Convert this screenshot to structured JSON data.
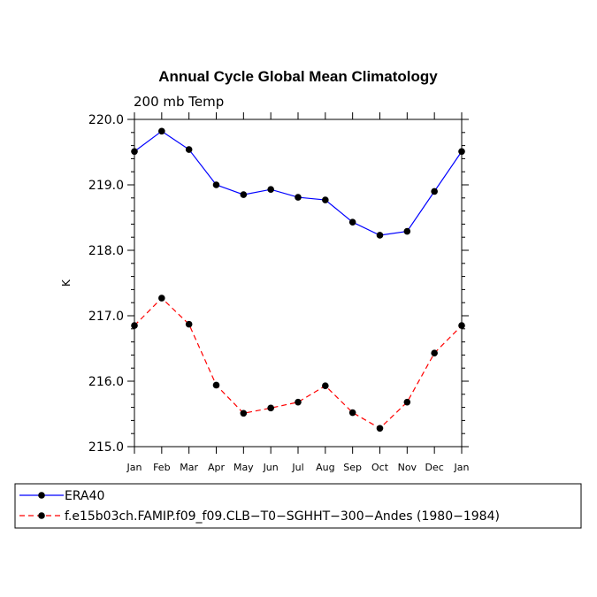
{
  "chart_data": {
    "type": "line",
    "title": "Annual Cycle Global Mean Climatology",
    "subtitle": "200 mb Temp",
    "ylabel": "K",
    "xlabel": "",
    "ylim": [
      215.0,
      220.0
    ],
    "y_ticks": [
      "215.0",
      "216.0",
      "217.0",
      "218.0",
      "219.0",
      "220.0"
    ],
    "categories": [
      "Jan",
      "Feb",
      "Mar",
      "Apr",
      "May",
      "Jun",
      "Jul",
      "Aug",
      "Sep",
      "Oct",
      "Nov",
      "Dec",
      "Jan"
    ],
    "series": [
      {
        "name": "ERA40",
        "color": "#0000ff",
        "dash": "solid",
        "values": [
          219.51,
          219.82,
          219.54,
          219.0,
          218.85,
          218.93,
          218.81,
          218.77,
          218.43,
          218.23,
          218.29,
          218.9,
          219.51
        ]
      },
      {
        "name": "f.e15b03ch.FAMIP.f09_f09.CLB−T0−SGHHT−300−Andes (1980−1984)",
        "color": "#ff0000",
        "dash": "dashed",
        "values": [
          216.85,
          217.27,
          216.87,
          215.94,
          215.51,
          215.59,
          215.68,
          215.93,
          215.52,
          215.28,
          215.68,
          216.43,
          216.85
        ]
      }
    ],
    "grid": false,
    "legend_position": "bottom"
  }
}
